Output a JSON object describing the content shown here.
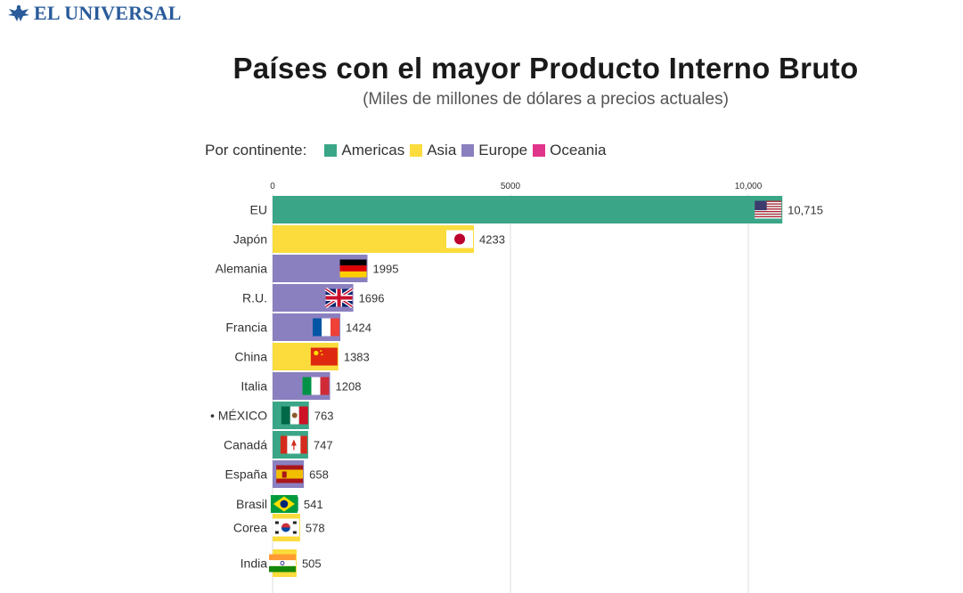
{
  "brand": {
    "name": "EL UNIVERSAL"
  },
  "title": "Países con el mayor Producto Interno Bruto",
  "subtitle": "(Miles de millones de dólares a precios actuales)",
  "legend": {
    "title": "Por continente:",
    "items": [
      {
        "label": "Americas",
        "color": "#3aa687"
      },
      {
        "label": "Asia",
        "color": "#fbdc3c"
      },
      {
        "label": "Europe",
        "color": "#8a80c0"
      },
      {
        "label": "Oceania",
        "color": "#e0358a"
      }
    ]
  },
  "chart_data": {
    "type": "bar",
    "orientation": "horizontal",
    "title": "Países con el mayor Producto Interno Bruto",
    "subtitle": "(Miles de millones de dólares a precios actuales)",
    "xlim": [
      0,
      11000
    ],
    "x_ticks": [
      0,
      5000,
      10000
    ],
    "x_tick_labels": [
      "0",
      "5000",
      "10,000"
    ],
    "grid": true,
    "legend_position": "top-left",
    "categories": [
      "EU",
      "Japón",
      "Alemania",
      "R.U.",
      "Francia",
      "China",
      "Italia",
      "• MÉXICO",
      "Canadá",
      "España",
      "Brasil",
      "Corea",
      "India"
    ],
    "values": [
      10715,
      4233,
      1995,
      1696,
      1424,
      1383,
      1208,
      763,
      747,
      658,
      541,
      578,
      505
    ],
    "value_labels": [
      "10,715",
      "4233",
      "1995",
      "1696",
      "1424",
      "1383",
      "1208",
      "763",
      "747",
      "658",
      "541",
      "578",
      "505"
    ],
    "continents": [
      "Americas",
      "Asia",
      "Europe",
      "Europe",
      "Europe",
      "Asia",
      "Europe",
      "Americas",
      "Americas",
      "Europe",
      "Americas",
      "Asia",
      "Asia"
    ],
    "flags": [
      "us-flag-icon",
      "japan-flag-icon",
      "germany-flag-icon",
      "uk-flag-icon",
      "france-flag-icon",
      "china-flag-icon",
      "italy-flag-icon",
      "mexico-flag-icon",
      "canada-flag-icon",
      "spain-flag-icon",
      "brazil-flag-icon",
      "korea-flag-icon",
      "india-flag-icon"
    ]
  }
}
